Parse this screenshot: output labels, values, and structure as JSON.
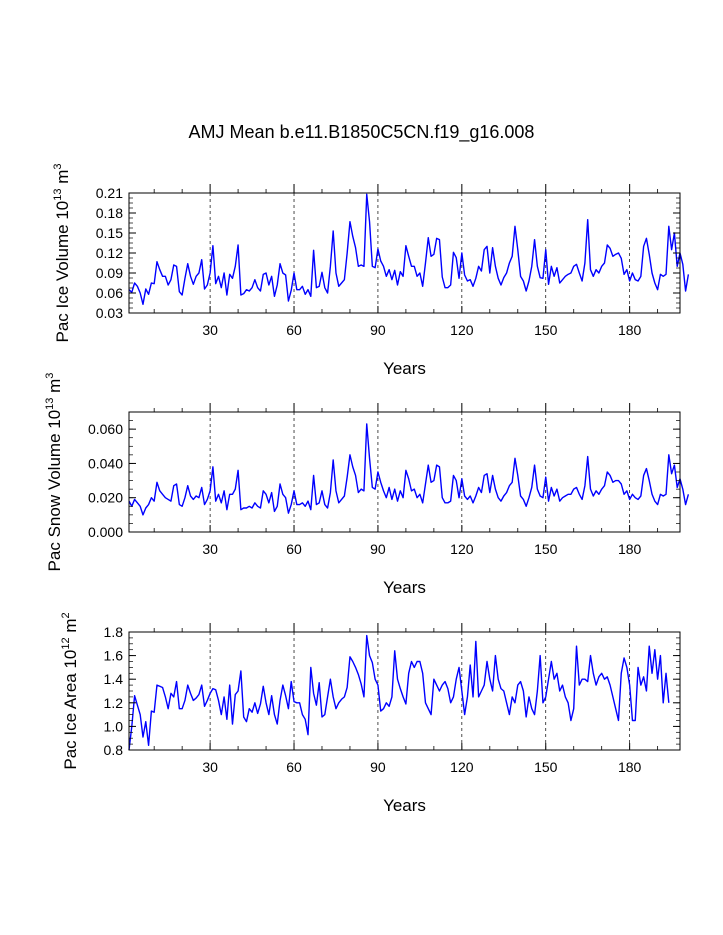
{
  "figure": {
    "title": "AMJ Mean b.e11.B1850C5CN.f19_g16.008"
  },
  "chart_data": [
    {
      "type": "line",
      "ylabel": "Pac Ice Volume",
      "ylabel_sup": "13",
      "ylabel_unit": "m",
      "ylabel_unit_sup": "3",
      "xlabel": "Years",
      "xlim": [
        1,
        198
      ],
      "ylim": [
        0.03,
        0.21
      ],
      "xticks": [
        30,
        60,
        90,
        120,
        150,
        180
      ],
      "yticks": [
        0.03,
        0.06,
        0.09,
        0.12,
        0.15,
        0.18,
        0.21
      ],
      "ytick_labels": [
        "0.03",
        "0.06",
        "0.09",
        "0.12",
        "0.15",
        "0.18",
        "0.21"
      ],
      "color": "#0000ff",
      "x_start": 1,
      "values": [
        0.065,
        0.061,
        0.075,
        0.07,
        0.06,
        0.043,
        0.066,
        0.058,
        0.075,
        0.074,
        0.107,
        0.095,
        0.085,
        0.085,
        0.072,
        0.08,
        0.102,
        0.1,
        0.062,
        0.057,
        0.082,
        0.104,
        0.085,
        0.073,
        0.085,
        0.09,
        0.11,
        0.066,
        0.072,
        0.09,
        0.131,
        0.074,
        0.085,
        0.068,
        0.09,
        0.057,
        0.088,
        0.082,
        0.1,
        0.132,
        0.057,
        0.059,
        0.065,
        0.063,
        0.068,
        0.08,
        0.068,
        0.063,
        0.088,
        0.09,
        0.072,
        0.085,
        0.055,
        0.072,
        0.104,
        0.09,
        0.087,
        0.048,
        0.064,
        0.09,
        0.065,
        0.065,
        0.07,
        0.058,
        0.065,
        0.055,
        0.124,
        0.068,
        0.07,
        0.091,
        0.068,
        0.06,
        0.1,
        0.153,
        0.09,
        0.07,
        0.075,
        0.08,
        0.12,
        0.167,
        0.145,
        0.128,
        0.1,
        0.102,
        0.1,
        0.208,
        0.167,
        0.1,
        0.098,
        0.126,
        0.108,
        0.1,
        0.085,
        0.095,
        0.08,
        0.094,
        0.072,
        0.092,
        0.085,
        0.131,
        0.115,
        0.1,
        0.1,
        0.085,
        0.09,
        0.07,
        0.105,
        0.143,
        0.115,
        0.118,
        0.142,
        0.14,
        0.084,
        0.068,
        0.068,
        0.072,
        0.121,
        0.113,
        0.082,
        0.12,
        0.087,
        0.078,
        0.08,
        0.07,
        0.082,
        0.1,
        0.093,
        0.125,
        0.13,
        0.09,
        0.128,
        0.1,
        0.082,
        0.072,
        0.083,
        0.09,
        0.105,
        0.115,
        0.16,
        0.125,
        0.085,
        0.078,
        0.063,
        0.078,
        0.1,
        0.14,
        0.1,
        0.083,
        0.082,
        0.125,
        0.073,
        0.1,
        0.085,
        0.098,
        0.075,
        0.08,
        0.085,
        0.088,
        0.09,
        0.1,
        0.103,
        0.09,
        0.078,
        0.105,
        0.17,
        0.095,
        0.085,
        0.095,
        0.09,
        0.1,
        0.105,
        0.132,
        0.127,
        0.115,
        0.118,
        0.12,
        0.112,
        0.088,
        0.095,
        0.078,
        0.09,
        0.08,
        0.078,
        0.085,
        0.13,
        0.142,
        0.118,
        0.09,
        0.075,
        0.065,
        0.088,
        0.085,
        0.088,
        0.16,
        0.125,
        0.15,
        0.1,
        0.12,
        0.103,
        0.063,
        0.088
      ]
    },
    {
      "type": "line",
      "ylabel": "Pac Snow Volume",
      "ylabel_sup": "13",
      "ylabel_unit": "m",
      "ylabel_unit_sup": "3",
      "xlabel": "Years",
      "xlim": [
        1,
        198
      ],
      "ylim": [
        0.0,
        0.07
      ],
      "xticks": [
        30,
        60,
        90,
        120,
        150,
        180
      ],
      "yticks": [
        0.0,
        0.02,
        0.04,
        0.06
      ],
      "ytick_labels": [
        "0.000",
        "0.020",
        "0.040",
        "0.060"
      ],
      "color": "#0000ff",
      "x_start": 1,
      "values": [
        0.018,
        0.015,
        0.019,
        0.017,
        0.015,
        0.01,
        0.014,
        0.016,
        0.02,
        0.018,
        0.029,
        0.024,
        0.022,
        0.02,
        0.019,
        0.018,
        0.027,
        0.028,
        0.016,
        0.015,
        0.02,
        0.027,
        0.021,
        0.019,
        0.021,
        0.02,
        0.026,
        0.016,
        0.019,
        0.024,
        0.038,
        0.018,
        0.022,
        0.017,
        0.024,
        0.013,
        0.022,
        0.022,
        0.025,
        0.036,
        0.013,
        0.014,
        0.014,
        0.015,
        0.014,
        0.017,
        0.015,
        0.014,
        0.024,
        0.022,
        0.017,
        0.023,
        0.012,
        0.015,
        0.028,
        0.022,
        0.02,
        0.011,
        0.016,
        0.024,
        0.016,
        0.016,
        0.017,
        0.015,
        0.018,
        0.013,
        0.033,
        0.016,
        0.017,
        0.024,
        0.016,
        0.014,
        0.023,
        0.042,
        0.024,
        0.017,
        0.019,
        0.021,
        0.032,
        0.045,
        0.038,
        0.033,
        0.023,
        0.025,
        0.024,
        0.063,
        0.043,
        0.026,
        0.025,
        0.035,
        0.029,
        0.024,
        0.02,
        0.026,
        0.019,
        0.025,
        0.018,
        0.024,
        0.02,
        0.036,
        0.031,
        0.024,
        0.025,
        0.02,
        0.022,
        0.017,
        0.028,
        0.039,
        0.029,
        0.03,
        0.039,
        0.038,
        0.02,
        0.017,
        0.017,
        0.018,
        0.033,
        0.03,
        0.02,
        0.031,
        0.021,
        0.019,
        0.021,
        0.017,
        0.021,
        0.026,
        0.023,
        0.033,
        0.034,
        0.023,
        0.033,
        0.025,
        0.02,
        0.018,
        0.021,
        0.023,
        0.027,
        0.029,
        0.043,
        0.033,
        0.021,
        0.019,
        0.015,
        0.02,
        0.026,
        0.039,
        0.025,
        0.021,
        0.02,
        0.032,
        0.018,
        0.026,
        0.021,
        0.025,
        0.018,
        0.02,
        0.021,
        0.022,
        0.022,
        0.025,
        0.026,
        0.022,
        0.019,
        0.027,
        0.044,
        0.025,
        0.021,
        0.024,
        0.022,
        0.025,
        0.027,
        0.035,
        0.033,
        0.029,
        0.03,
        0.03,
        0.028,
        0.022,
        0.024,
        0.019,
        0.022,
        0.02,
        0.019,
        0.021,
        0.033,
        0.037,
        0.03,
        0.022,
        0.018,
        0.016,
        0.022,
        0.021,
        0.022,
        0.045,
        0.034,
        0.039,
        0.026,
        0.031,
        0.025,
        0.016,
        0.022
      ]
    },
    {
      "type": "line",
      "ylabel": "Pac Ice Area",
      "ylabel_sup": "12",
      "ylabel_unit": "m",
      "ylabel_unit_sup": "2",
      "xlabel": "Years",
      "xlim": [
        1,
        198
      ],
      "ylim": [
        0.8,
        1.8
      ],
      "xticks": [
        30,
        60,
        90,
        120,
        150,
        180
      ],
      "yticks": [
        0.8,
        1.0,
        1.2,
        1.4,
        1.6,
        1.8
      ],
      "ytick_labels": [
        "0.8",
        "1.0",
        "1.2",
        "1.4",
        "1.6",
        "1.8"
      ],
      "color": "#0000ff",
      "x_start": 1,
      "values": [
        0.8,
        1.0,
        1.26,
        1.18,
        1.1,
        0.91,
        1.04,
        0.84,
        1.13,
        1.12,
        1.35,
        1.34,
        1.33,
        1.25,
        1.15,
        1.28,
        1.25,
        1.38,
        1.15,
        1.15,
        1.22,
        1.35,
        1.28,
        1.22,
        1.24,
        1.27,
        1.35,
        1.17,
        1.22,
        1.28,
        1.32,
        1.31,
        1.22,
        1.1,
        1.25,
        1.06,
        1.35,
        1.02,
        1.27,
        1.3,
        1.47,
        1.08,
        1.04,
        1.15,
        1.12,
        1.2,
        1.11,
        1.19,
        1.34,
        1.2,
        1.1,
        1.26,
        1.1,
        1.02,
        1.22,
        1.35,
        1.26,
        1.15,
        1.38,
        1.21,
        1.2,
        1.2,
        1.1,
        1.06,
        0.93,
        1.5,
        1.28,
        1.18,
        1.37,
        1.08,
        1.1,
        1.25,
        1.4,
        1.25,
        1.15,
        1.2,
        1.23,
        1.25,
        1.33,
        1.59,
        1.55,
        1.5,
        1.44,
        1.36,
        1.25,
        1.77,
        1.6,
        1.54,
        1.4,
        1.35,
        1.13,
        1.15,
        1.2,
        1.17,
        1.25,
        1.64,
        1.4,
        1.32,
        1.25,
        1.19,
        1.45,
        1.55,
        1.5,
        1.55,
        1.55,
        1.45,
        1.2,
        1.15,
        1.1,
        1.4,
        1.35,
        1.3,
        1.35,
        1.38,
        1.32,
        1.2,
        1.25,
        1.4,
        1.5,
        1.3,
        1.1,
        1.25,
        1.52,
        1.25,
        1.72,
        1.25,
        1.3,
        1.35,
        1.55,
        1.4,
        1.3,
        1.6,
        1.4,
        1.32,
        1.3,
        1.2,
        1.1,
        1.25,
        1.2,
        1.35,
        1.38,
        1.3,
        1.08,
        1.25,
        1.15,
        1.1,
        1.3,
        1.6,
        1.2,
        1.25,
        1.4,
        1.55,
        1.4,
        1.45,
        1.3,
        1.35,
        1.25,
        1.2,
        1.05,
        1.15,
        1.68,
        1.35,
        1.4,
        1.4,
        1.38,
        1.6,
        1.45,
        1.35,
        1.42,
        1.45,
        1.4,
        1.42,
        1.35,
        1.25,
        1.15,
        1.05,
        1.45,
        1.58,
        1.5,
        1.35,
        1.05,
        1.05,
        1.5,
        1.35,
        1.42,
        1.3,
        1.68,
        1.45,
        1.65,
        1.4,
        1.6,
        1.2,
        1.45,
        1.2
      ]
    }
  ]
}
